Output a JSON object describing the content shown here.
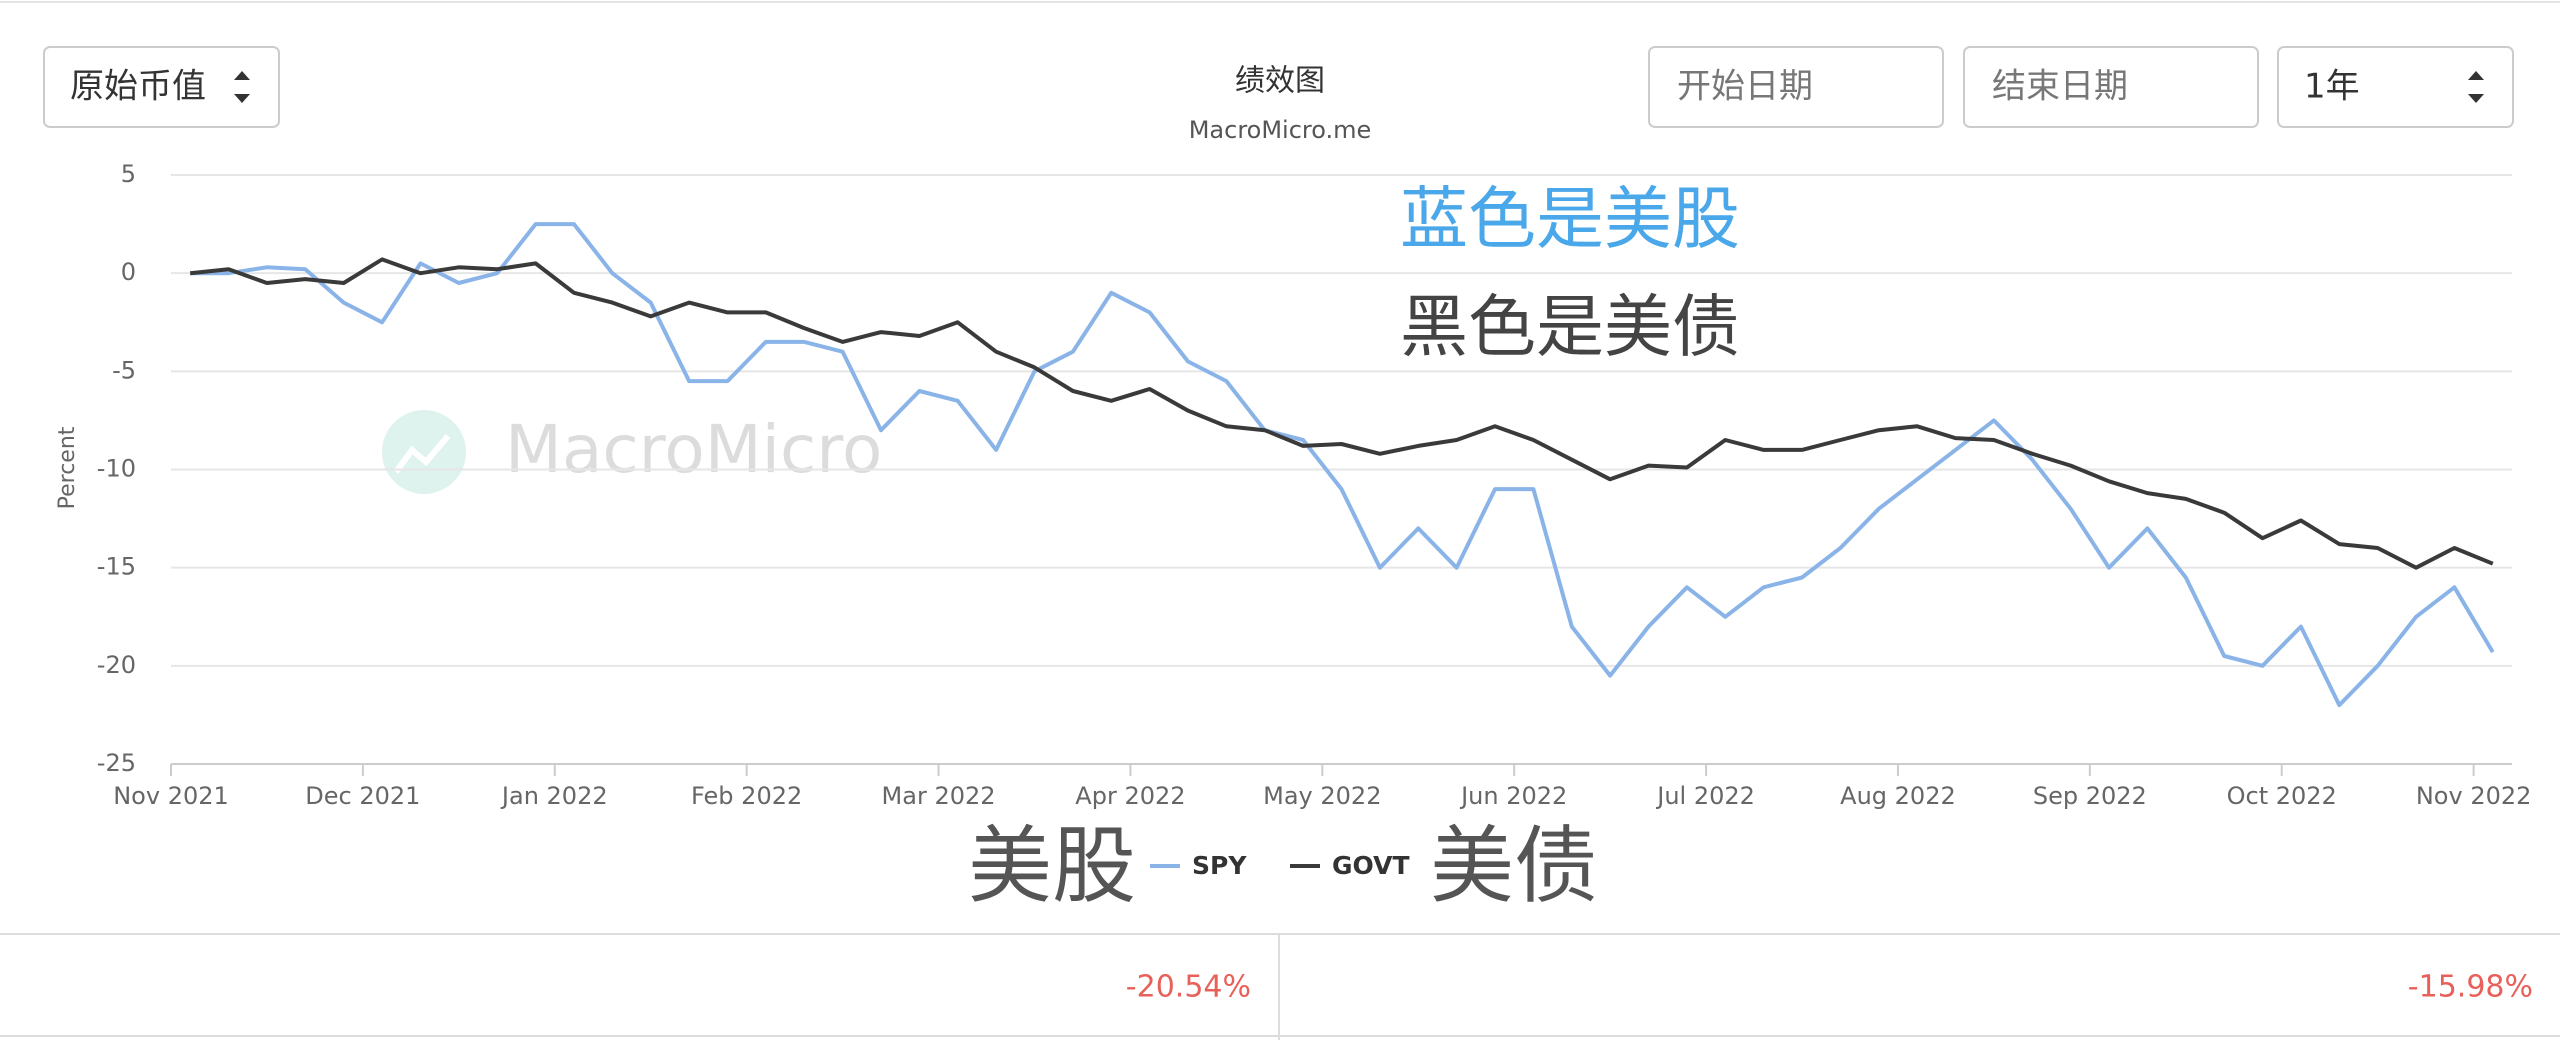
{
  "controls": {
    "currency": "原始币值",
    "start": "开始日期",
    "end": "结束日期",
    "range": "1年"
  },
  "watermark": "MacroMicro",
  "chart_data": {
    "type": "line",
    "title": "绩效图",
    "subtitle": "MacroMicro.me",
    "y_label": "Percent",
    "annotations": [
      "蓝色是美股",
      "黑色是美债",
      "美股",
      "美债"
    ],
    "xlim": [
      0,
      12.2
    ],
    "ylim": [
      -25,
      5
    ],
    "yticks": [
      5,
      0,
      -5,
      -10,
      -15,
      -20,
      -25
    ],
    "grid": true,
    "xticks": [
      {
        "value": 0,
        "label": "Nov 2021"
      },
      {
        "value": 1,
        "label": "Dec 2021"
      },
      {
        "value": 2,
        "label": "Jan 2022"
      },
      {
        "value": 3,
        "label": "Feb 2022"
      },
      {
        "value": 4,
        "label": "Mar 2022"
      },
      {
        "value": 5,
        "label": "Apr 2022"
      },
      {
        "value": 6,
        "label": "May 2022"
      },
      {
        "value": 7,
        "label": "Jun 2022"
      },
      {
        "value": 8,
        "label": "Jul 2022"
      },
      {
        "value": 9,
        "label": "Aug 2022"
      },
      {
        "value": 10,
        "label": "Sep 2022"
      },
      {
        "value": 11,
        "label": "Oct 2022"
      },
      {
        "value": 12,
        "label": "Nov 2022"
      }
    ],
    "x": [
      0.1,
      0.3,
      0.5,
      0.7,
      0.9,
      1.1,
      1.3,
      1.5,
      1.7,
      1.9,
      2.1,
      2.3,
      2.5,
      2.7,
      2.9,
      3.1,
      3.3,
      3.5,
      3.7,
      3.9,
      4.1,
      4.3,
      4.5,
      4.7,
      4.9,
      5.1,
      5.3,
      5.5,
      5.7,
      5.9,
      6.1,
      6.3,
      6.5,
      6.7,
      6.9,
      7.1,
      7.3,
      7.5,
      7.7,
      7.9,
      8.1,
      8.3,
      8.5,
      8.7,
      8.9,
      9.1,
      9.3,
      9.5,
      9.7,
      9.9,
      10.1,
      10.3,
      10.5,
      10.7,
      10.9,
      11.1,
      11.3,
      11.5,
      11.7,
      11.9,
      12.1
    ],
    "series": [
      {
        "name": "SPY",
        "color": "#8ab4e8",
        "values": [
          0,
          0,
          0.3,
          0.2,
          -1.5,
          -2.5,
          0.5,
          -0.5,
          0,
          2.5,
          2.5,
          0,
          -1.5,
          -5.5,
          -5.5,
          -3.5,
          -3.5,
          -4,
          -8,
          -6,
          -6.5,
          -9,
          -5,
          -4,
          -1,
          -2,
          -4.5,
          -5.5,
          -8,
          -8.5,
          -11,
          -15,
          -13,
          -15,
          -11,
          -11,
          -18,
          -20.5,
          -18,
          -16,
          -17.5,
          -16,
          -15.5,
          -14,
          -12,
          -10.5,
          -9,
          -7.5,
          -9.5,
          -12,
          -15,
          -13,
          -15.5,
          -19.5,
          -20,
          -18,
          -22,
          -20,
          -17.5,
          -16,
          -19.3
        ]
      },
      {
        "name": "GOVT",
        "color": "#3a3a3a",
        "values": [
          0,
          0.2,
          -0.5,
          -0.3,
          -0.5,
          0.7,
          0,
          0.3,
          0.2,
          0.5,
          -1,
          -1.5,
          -2.2,
          -1.5,
          -2,
          -2,
          -2.8,
          -3.5,
          -3,
          -3.2,
          -2.5,
          -4,
          -4.8,
          -6,
          -6.5,
          -5.9,
          -7,
          -7.8,
          -8,
          -8.8,
          -8.7,
          -9.2,
          -8.8,
          -8.5,
          -7.8,
          -8.5,
          -9.5,
          -10.5,
          -9.8,
          -9.9,
          -8.5,
          -9,
          -9,
          -8.5,
          -8,
          -7.8,
          -8.4,
          -8.5,
          -9.2,
          -9.8,
          -10.6,
          -11.2,
          -11.5,
          -12.2,
          -13.5,
          -12.6,
          -13.8,
          -14,
          -15,
          -14,
          -14.8
        ]
      }
    ]
  },
  "summary": [
    "-20.54%",
    "-15.98%"
  ]
}
